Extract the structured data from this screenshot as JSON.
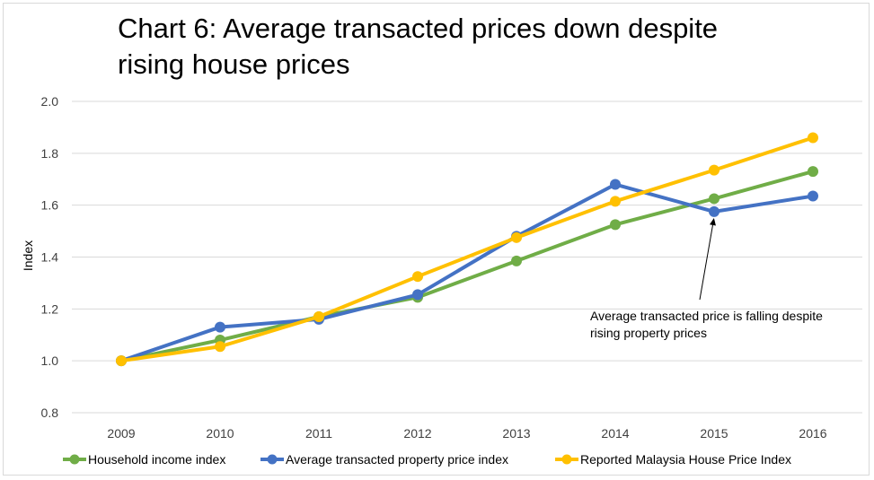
{
  "chart_data": {
    "type": "line",
    "title_lines": [
      "Chart 6: Average transacted prices down despite",
      "rising house prices"
    ],
    "xlabel": "",
    "ylabel": "Index",
    "categories": [
      "2009",
      "2010",
      "2011",
      "2012",
      "2013",
      "2014",
      "2015",
      "2016"
    ],
    "ylim": [
      0.8,
      2.0
    ],
    "yticks": [
      "0.8",
      "1.0",
      "1.2",
      "1.4",
      "1.6",
      "1.8",
      "2.0"
    ],
    "grid": true,
    "legend_position": "bottom",
    "series": [
      {
        "name": "Household income index",
        "color": "#70ad47",
        "values": [
          1.0,
          1.08,
          1.17,
          1.245,
          1.385,
          1.525,
          1.625,
          1.73
        ]
      },
      {
        "name": "Average transacted property price index",
        "color": "#4472c4",
        "values": [
          1.0,
          1.13,
          1.16,
          1.255,
          1.48,
          1.68,
          1.575,
          1.635
        ]
      },
      {
        "name": "Reported Malaysia House Price Index",
        "color": "#ffc000",
        "values": [
          1.0,
          1.055,
          1.17,
          1.325,
          1.475,
          1.615,
          1.735,
          1.86
        ]
      }
    ],
    "annotation": {
      "lines": [
        "Average transacted price is falling despite",
        "rising property prices"
      ],
      "points_to": {
        "category": "2015",
        "value": 1.575
      }
    }
  }
}
